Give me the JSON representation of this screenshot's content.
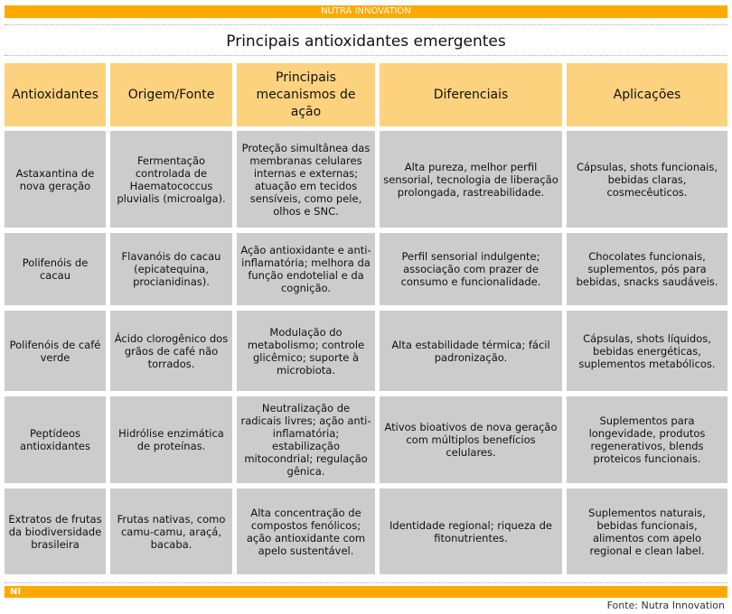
{
  "header_bar": "NUTRA INNOVATION",
  "title": "Principais antioxidantes emergentes",
  "columns": [
    "Antioxidantes",
    "Origem/Fonte",
    "Principais mecanismos de ação",
    "Diferenciais",
    "Aplicações"
  ],
  "rows": [
    [
      "Astaxantina de nova geração",
      "Fermentação controlada de Haematococcus pluvialis (microalga).",
      "Proteção simultânea das membranas celulares internas e externas; atuação em tecidos sensíveis, como pele, olhos e SNC.",
      "Alta pureza, melhor perfil sensorial, tecnologia de liberação prolongada, rastreabilidade.",
      "Cápsulas, shots funcionais, bebidas claras, cosmecêuticos."
    ],
    [
      "Polifenóis de cacau",
      "Flavanóis do cacau (epicatequina, procianidinas).",
      "Ação antioxidante e anti-inflamatória; melhora da função endotelial e da cognição.",
      "Perfil sensorial indulgente; associação com prazer de consumo e funcionalidade.",
      "Chocolates funcionais, suplementos, pós para bebidas, snacks saudáveis."
    ],
    [
      "Polifenóis de café verde",
      "Ácido clorogênico dos grãos de café não torrados.",
      "Modulação do metabolismo; controle glicêmico; suporte à microbiota.",
      "Alta estabilidade térmica; fácil padronização.",
      "Cápsulas, shots líquidos, bebidas energéticas, suplementos metabólicos."
    ],
    [
      "Peptídeos antioxidantes",
      "Hidrólise enzimática de proteínas.",
      "Neutralização de radicais livres; ação anti-inflamatória; estabilização mitocondrial; regulação gênica.",
      "Ativos bioativos de nova geração com múltiplos benefícios celulares.",
      "Suplementos para longevidade, produtos regenerativos, blends proteicos funcionais."
    ],
    [
      "Extratos de frutas da biodiversidade brasileira",
      "Frutas nativas, como camu-camu, araçá, bacaba.",
      "Alta concentração de compostos fenólicos; ação antioxidante com apelo sustentável.",
      "Identidade regional; riqueza de fitonutrientes.",
      "Suplementos naturais, bebidas funcionais, alimentos com apelo regional e clean label."
    ]
  ],
  "footer_logo": "NI",
  "source": "Fonte: Nutra Innovation",
  "colors": {
    "accent": "#ffa800",
    "header_cell": "#fdd27e",
    "body_cell": "#cccccc"
  }
}
